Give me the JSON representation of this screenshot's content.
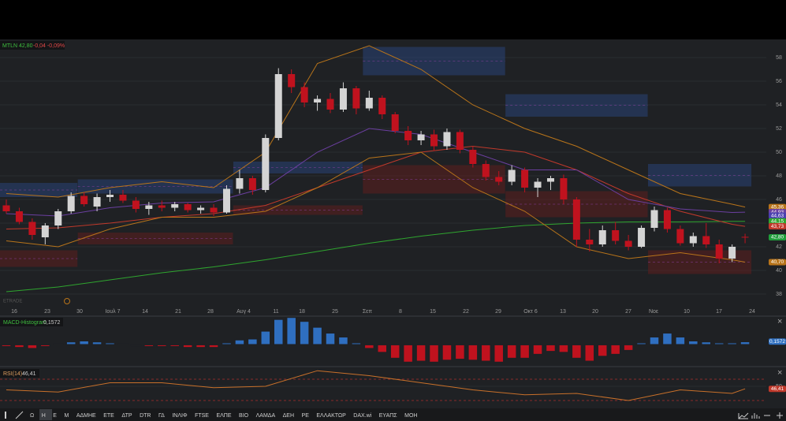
{
  "legend": {
    "symbol": "MTLN 42,80",
    "change": "-0,04 -0,09%"
  },
  "watermark": "ETRADE",
  "chart_data": [
    {
      "type": "candlestick",
      "candles": [
        [
          45.5,
          46,
          44.8,
          45
        ],
        [
          45,
          45.3,
          43.9,
          44.1
        ],
        [
          44.1,
          44.4,
          42.6,
          43
        ],
        [
          42.8,
          44,
          42.2,
          43.8
        ],
        [
          43.8,
          45.2,
          43.5,
          45
        ],
        [
          45,
          46.6,
          44.8,
          46.3
        ],
        [
          46.3,
          46.6,
          45.4,
          45.6
        ],
        [
          45.4,
          46.5,
          45,
          46.2
        ],
        [
          46.2,
          46.8,
          45.8,
          46.4
        ],
        [
          46.4,
          46.8,
          45.7,
          45.9
        ],
        [
          45.9,
          46.2,
          44.9,
          45.2
        ],
        [
          45.2,
          45.8,
          44.7,
          45.5
        ],
        [
          45.5,
          45.9,
          45,
          45.3
        ],
        [
          45.3,
          45.8,
          45,
          45.6
        ],
        [
          45.6,
          45.7,
          44.9,
          45.1
        ],
        [
          45.1,
          45.5,
          44.8,
          45.3
        ],
        [
          45.3,
          45.6,
          44.6,
          44.9
        ],
        [
          44.9,
          47.2,
          44.8,
          46.9
        ],
        [
          46.9,
          48.5,
          46.5,
          47.8
        ],
        [
          47.8,
          48,
          46.4,
          46.8
        ],
        [
          46.8,
          51.5,
          46.6,
          51.2
        ],
        [
          51.2,
          57.1,
          51,
          56.6
        ],
        [
          56.6,
          57,
          55,
          55.5
        ],
        [
          55.5,
          55.9,
          53.8,
          54.2
        ],
        [
          54.2,
          54.8,
          53.5,
          54.5
        ],
        [
          54.5,
          55,
          53.3,
          53.6
        ],
        [
          53.6,
          55.9,
          53.4,
          55.4
        ],
        [
          55.4,
          55.6,
          53.2,
          53.7
        ],
        [
          53.7,
          55.2,
          53.5,
          54.6
        ],
        [
          54.6,
          54.8,
          52.8,
          53.2
        ],
        [
          53.2,
          53.4,
          51.6,
          51.8
        ],
        [
          51.8,
          52.2,
          50.6,
          51
        ],
        [
          51,
          51.8,
          50.6,
          51.5
        ],
        [
          51.5,
          51.9,
          50.1,
          50.5
        ],
        [
          50.5,
          52,
          50.2,
          51.7
        ],
        [
          51.7,
          51.9,
          49.9,
          50.2
        ],
        [
          50.2,
          50.5,
          48.7,
          49
        ],
        [
          49,
          49.3,
          47.6,
          47.9
        ],
        [
          47.9,
          48.4,
          47.2,
          47.5
        ],
        [
          47.5,
          48.9,
          47.2,
          48.5
        ],
        [
          48.5,
          48.7,
          46.6,
          47
        ],
        [
          47,
          47.8,
          46.2,
          47.5
        ],
        [
          47.5,
          48,
          46.8,
          47.8
        ],
        [
          47.8,
          48.1,
          45.6,
          46
        ],
        [
          46,
          46.2,
          42,
          42.6
        ],
        [
          42.6,
          43.5,
          41.6,
          42.2
        ],
        [
          42.2,
          43.8,
          42,
          43.4
        ],
        [
          43.4,
          44.1,
          42.2,
          42.5
        ],
        [
          42.5,
          43,
          41.7,
          42
        ],
        [
          42,
          43.8,
          41.9,
          43.6
        ],
        [
          43.6,
          45.4,
          43.3,
          45.1
        ],
        [
          45.1,
          45.3,
          43.2,
          43.5
        ],
        [
          43.5,
          43.8,
          42.1,
          42.3
        ],
        [
          42.3,
          43.2,
          42,
          42.9
        ],
        [
          42.9,
          44,
          41.9,
          42.2
        ],
        [
          42.2,
          42.6,
          40.6,
          41
        ],
        [
          41,
          42.2,
          40.7,
          42
        ],
        [
          42.84,
          43.1,
          42.3,
          42.8
        ]
      ],
      "up_color": "#d4d4d4",
      "down_color": "#c0121e",
      "ylim": [
        37,
        59.5
      ],
      "yticks": [
        38,
        40,
        42,
        44,
        46,
        48,
        50,
        52,
        54,
        56,
        58
      ],
      "x_labels": [
        "16",
        "23",
        "30",
        "Ιουλ 7",
        "14",
        "21",
        "28",
        "Αυγ 4",
        "11",
        "18",
        "25",
        "Σεπ",
        "8",
        "15",
        "22",
        "29",
        "Οκτ 6",
        "13",
        "20",
        "27",
        "Νοε",
        "10",
        "17",
        "24"
      ],
      "lines": [
        {
          "color": "#2fa52f",
          "x": [
            0,
            4,
            8,
            12,
            16,
            20,
            24,
            28,
            32,
            36,
            40,
            44,
            48,
            52,
            56,
            57
          ],
          "values": [
            38.2,
            38.6,
            39.2,
            39.8,
            40.3,
            40.9,
            41.6,
            42.3,
            42.9,
            43.4,
            43.8,
            44,
            44.1,
            44.1,
            44.15,
            44.15
          ]
        },
        {
          "color": "#c0392b",
          "x": [
            0,
            4,
            8,
            12,
            16,
            20,
            24,
            28,
            32,
            36,
            40,
            44,
            48,
            52,
            56,
            57
          ],
          "values": [
            43.5,
            43.6,
            44,
            44.5,
            44.8,
            45.5,
            47,
            48.5,
            50,
            50.5,
            50,
            48.5,
            46.5,
            45,
            43.9,
            43.73
          ]
        },
        {
          "color": "#6b3fa0",
          "x": [
            0,
            4,
            8,
            12,
            16,
            20,
            24,
            28,
            32,
            36,
            40,
            44,
            48,
            52,
            56,
            57
          ],
          "values": [
            44.8,
            44.6,
            45.3,
            45.7,
            45.8,
            47,
            50,
            52,
            51.5,
            50,
            48.5,
            48.5,
            46,
            45.2,
            44.9,
            44.93
          ]
        },
        {
          "color": "#b8741a",
          "x": [
            0,
            4,
            8,
            12,
            16,
            20,
            24,
            28,
            32,
            36,
            40,
            44,
            48,
            52,
            56,
            57
          ],
          "values": [
            46.5,
            46.2,
            47,
            47.5,
            47,
            50,
            57.5,
            59,
            57,
            54,
            52,
            50.5,
            48.5,
            46.5,
            45.6,
            45.36
          ]
        },
        {
          "color": "#b8741a",
          "x": [
            0,
            4,
            8,
            12,
            16,
            20,
            24,
            28,
            32,
            36,
            40,
            44,
            48,
            52,
            56,
            57
          ],
          "values": [
            42.5,
            42,
            43.5,
            44.5,
            44.5,
            45,
            47,
            49.5,
            50,
            47,
            45,
            42,
            41,
            41.5,
            40.9,
            40.7
          ]
        }
      ],
      "zones": [
        {
          "color": "#2a4a8a",
          "from": 0,
          "to": 5,
          "low": 46.2,
          "high": 47.4
        },
        {
          "color": "#2a4a8a",
          "from": 6,
          "to": 17,
          "low": 46.5,
          "high": 47.7
        },
        {
          "color": "#2a4a8a",
          "from": 18,
          "to": 27,
          "low": 48.2,
          "high": 49.2
        },
        {
          "color": "#2a4a8a",
          "from": 28,
          "to": 38,
          "low": 56.5,
          "high": 58.9
        },
        {
          "color": "#2a4a8a",
          "from": 39,
          "to": 49,
          "low": 53,
          "high": 54.9
        },
        {
          "color": "#2a4a8a",
          "from": 50,
          "to": 57,
          "low": 47.1,
          "high": 49
        },
        {
          "color": "#6a1c1c",
          "from": 0,
          "to": 5,
          "low": 40.3,
          "high": 41.7
        },
        {
          "color": "#6a1c1c",
          "from": 6,
          "to": 17,
          "low": 42.2,
          "high": 43.2
        },
        {
          "color": "#6a1c1c",
          "from": 18,
          "to": 27,
          "low": 44.7,
          "high": 45.5
        },
        {
          "color": "#6a1c1c",
          "from": 28,
          "to": 38,
          "low": 46.5,
          "high": 48.9
        },
        {
          "color": "#6a1c1c",
          "from": 39,
          "to": 49,
          "low": 44.5,
          "high": 46.7
        },
        {
          "color": "#6a1c1c",
          "from": 50,
          "to": 57,
          "low": 39.7,
          "high": 41.7
        }
      ],
      "price_labels": [
        {
          "value": 45.36,
          "label": "45,36",
          "color": "#b8741a"
        },
        {
          "value": 44.93,
          "label": "44,93",
          "color": "#6b3fa0"
        },
        {
          "value": 44.63,
          "label": "44,63",
          "color": "#4b3fb0"
        },
        {
          "value": 44.15,
          "label": "44,15",
          "color": "#2fa52f"
        },
        {
          "value": 43.73,
          "label": "43,73",
          "color": "#c0392b"
        },
        {
          "value": 42.8,
          "label": "42,80",
          "color": "#1f9d3a"
        },
        {
          "value": 40.7,
          "label": "40,70",
          "color": "#b8741a"
        }
      ]
    },
    {
      "type": "bar",
      "title": "MACD-Histogram",
      "value_label": "0,1572",
      "values": [
        -0.1,
        -0.15,
        -0.2,
        -0.1,
        0.05,
        0.15,
        0.2,
        0.15,
        0.1,
        0.05,
        -0.05,
        -0.1,
        -0.1,
        -0.1,
        -0.15,
        -0.15,
        -0.15,
        0.1,
        0.25,
        0.3,
        0.7,
        1.3,
        1.4,
        1.2,
        0.9,
        0.6,
        0.4,
        0.1,
        -0.2,
        -0.4,
        -0.7,
        -0.9,
        -0.85,
        -0.9,
        -0.8,
        -0.75,
        -0.8,
        -0.85,
        -0.9,
        -0.7,
        -0.7,
        -0.5,
        -0.35,
        -0.4,
        -0.7,
        -0.85,
        -0.6,
        -0.5,
        -0.3,
        0.1,
        0.4,
        0.6,
        0.4,
        0.2,
        0.15,
        0.1,
        0.1,
        0.1572
      ],
      "up_color": "#2f6fc0",
      "down_color": "#c0121e",
      "ylim": [
        -1,
        1.5
      ]
    },
    {
      "type": "line",
      "title": "RSI(14)",
      "value_label": "46,41",
      "color": "#c8702a",
      "x": [
        0,
        4,
        8,
        12,
        16,
        20,
        24,
        28,
        32,
        36,
        40,
        44,
        48,
        52,
        56,
        57
      ],
      "values": [
        45,
        42,
        55,
        55,
        48,
        50,
        72,
        65,
        55,
        45,
        38,
        40,
        30,
        45,
        40,
        46.41
      ],
      "ylim": [
        20,
        80
      ],
      "yticks": [
        50
      ]
    }
  ],
  "toolbar": [
    "Ω",
    "Η",
    "Ε",
    "Μ",
    "ΑΔΜΗΕ",
    "ΕΤΕ",
    "ΔΤΡ",
    "DTR",
    "ΓΔ",
    "ΙΝΛΙΦ",
    "FTSE",
    "ΕΛΠΕ",
    "ΒΙΟ",
    "ΛΑΜΔΑ",
    "ΔΕΗ",
    "ΡΕ",
    "ΕΛΛΑΚΤΩΡ",
    "DAX.wi",
    "ΕΥΑΠΣ",
    "ΜΟΗ"
  ]
}
